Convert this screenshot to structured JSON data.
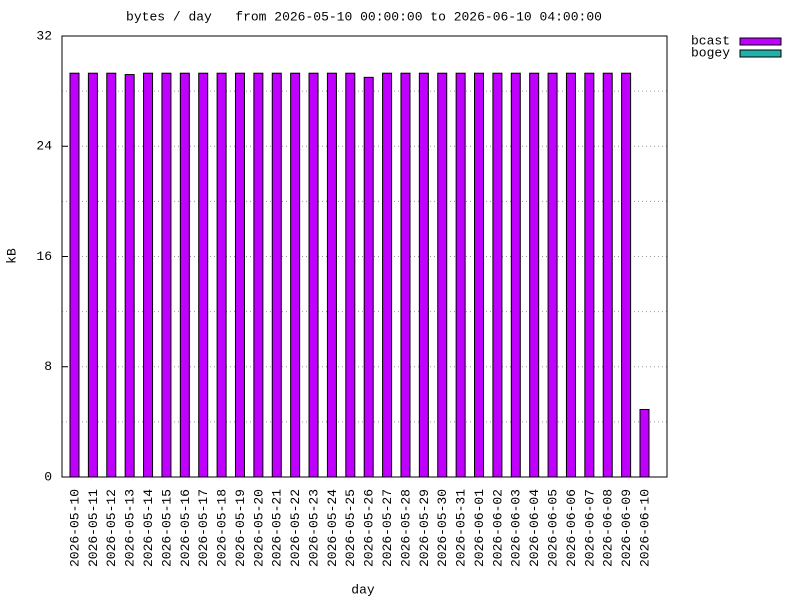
{
  "chart_data": {
    "type": "bar",
    "title": "bytes / day   from 2026-05-10 00:00:00 to 2026-06-10 04:00:00",
    "x_label": "day",
    "y_label": "kB",
    "categories": [
      "2026-05-10",
      "2026-05-11",
      "2026-05-12",
      "2026-05-13",
      "2026-05-14",
      "2026-05-15",
      "2026-05-16",
      "2026-05-17",
      "2026-05-18",
      "2026-05-19",
      "2026-05-20",
      "2026-05-21",
      "2026-05-22",
      "2026-05-23",
      "2026-05-24",
      "2026-05-25",
      "2026-05-26",
      "2026-05-27",
      "2026-05-28",
      "2026-05-29",
      "2026-05-30",
      "2026-05-31",
      "2026-06-01",
      "2026-06-02",
      "2026-06-03",
      "2026-06-04",
      "2026-06-05",
      "2026-06-06",
      "2026-06-07",
      "2026-06-08",
      "2026-06-09",
      "2026-06-10"
    ],
    "series": [
      {
        "name": "bcast",
        "color": "#c000ff",
        "values": [
          29.3,
          29.3,
          29.3,
          29.2,
          29.3,
          29.3,
          29.3,
          29.3,
          29.3,
          29.3,
          29.3,
          29.3,
          29.3,
          29.3,
          29.3,
          29.3,
          29.0,
          29.3,
          29.3,
          29.3,
          29.3,
          29.3,
          29.3,
          29.3,
          29.3,
          29.3,
          29.3,
          29.3,
          29.3,
          29.3,
          29.3,
          4.9
        ]
      },
      {
        "name": "bogey",
        "color": "#20b2aa",
        "values": [
          0,
          0,
          0,
          0,
          0,
          0,
          0,
          0,
          0,
          0,
          0,
          0,
          0,
          0,
          0,
          0,
          0,
          0,
          0,
          0,
          0,
          0,
          0,
          0,
          0,
          0,
          0,
          0,
          0,
          0,
          0,
          0
        ]
      }
    ],
    "ylim": [
      0,
      32
    ],
    "yticks": [
      0,
      8,
      16,
      24,
      32
    ],
    "y_minor_ticks": [
      4,
      12,
      20,
      28
    ],
    "grid": true,
    "legend": "outside-top-right"
  }
}
